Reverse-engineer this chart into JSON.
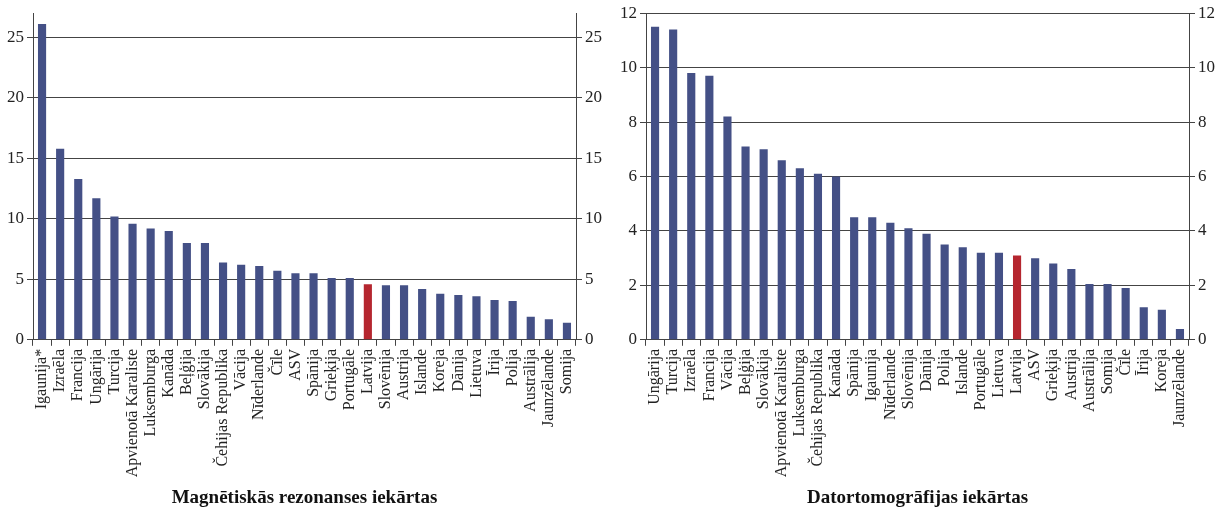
{
  "chart_data": [
    {
      "type": "bar",
      "title": "Magnētiskās rezonanses iekārtas",
      "categories": [
        "Igaunija*",
        "Izraēla",
        "Francija",
        "Ungārija",
        "Turcija",
        "Apvienotā Karaliste",
        "Luksemburga",
        "Kanāda",
        "Beļģija",
        "Slovākija",
        "Čehijas Republika",
        "Vācija",
        "Nīderlande",
        "Čīle",
        "ASV",
        "Spānija",
        "Grieķija",
        "Portugāle",
        "Latvija",
        "Slovēnija",
        "Austrija",
        "Islande",
        "Koreja",
        "Dānija",
        "Lietuva",
        "Īrija",
        "Polija",
        "Austrālija",
        "Jaunzēlande",
        "Somija"
      ],
      "values": [
        26.1,
        15.8,
        13.3,
        11.7,
        10.2,
        9.6,
        9.2,
        9.0,
        8.0,
        8.0,
        6.4,
        6.2,
        6.1,
        5.7,
        5.5,
        5.5,
        5.1,
        5.1,
        4.6,
        4.5,
        4.5,
        4.2,
        3.8,
        3.7,
        3.6,
        3.3,
        3.2,
        1.9,
        1.7,
        1.4
      ],
      "colors": [
        "#445086",
        "#445086",
        "#445086",
        "#445086",
        "#445086",
        "#445086",
        "#445086",
        "#445086",
        "#445086",
        "#445086",
        "#445086",
        "#445086",
        "#445086",
        "#445086",
        "#445086",
        "#445086",
        "#445086",
        "#445086",
        "#b5262f",
        "#445086",
        "#445086",
        "#445086",
        "#445086",
        "#445086",
        "#445086",
        "#445086",
        "#445086",
        "#445086",
        "#445086",
        "#445086"
      ],
      "ylim": [
        0,
        27
      ],
      "yticks": [
        0,
        5,
        10,
        15,
        20,
        25
      ],
      "y2lim": [
        0,
        27
      ],
      "y2ticks": [
        0,
        5,
        10,
        15,
        20,
        25
      ],
      "grid": "y",
      "legend": false
    },
    {
      "type": "bar",
      "title": "Datortomogrāfijas iekārtas",
      "categories": [
        "Ungārija",
        "Turcija",
        "Izraēla",
        "Francija",
        "Vācija",
        "Beļģija",
        "Slovākija",
        "Apvienotā Karaliste",
        "Luksemburga",
        "Čehijas Republika",
        "Kanāda",
        "Spānija",
        "Igaunija",
        "Nīderlande",
        "Slovēnija",
        "Dānija",
        "Polija",
        "Islande",
        "Portugāle",
        "Lietuva",
        "Latvija",
        "ASV",
        "Grieķija",
        "Austrija",
        "Austrālija",
        "Somija",
        "Čīle",
        "Īrija",
        "Koreja",
        "Jaunzēlande"
      ],
      "values": [
        11.5,
        11.4,
        9.8,
        9.7,
        8.2,
        7.1,
        7.0,
        6.6,
        6.3,
        6.1,
        6.0,
        4.5,
        4.5,
        4.3,
        4.1,
        3.9,
        3.5,
        3.4,
        3.2,
        3.2,
        3.1,
        3.0,
        2.8,
        2.6,
        2.05,
        2.05,
        1.9,
        1.2,
        1.1,
        0.4
      ],
      "colors": [
        "#445086",
        "#445086",
        "#445086",
        "#445086",
        "#445086",
        "#445086",
        "#445086",
        "#445086",
        "#445086",
        "#445086",
        "#445086",
        "#445086",
        "#445086",
        "#445086",
        "#445086",
        "#445086",
        "#445086",
        "#445086",
        "#445086",
        "#445086",
        "#b5262f",
        "#445086",
        "#445086",
        "#445086",
        "#445086",
        "#445086",
        "#445086",
        "#445086",
        "#445086",
        "#445086"
      ],
      "ylim": [
        0,
        12
      ],
      "yticks": [
        0,
        2,
        4,
        6,
        8,
        10,
        12
      ],
      "y2lim": [
        0,
        12
      ],
      "y2ticks": [
        0,
        2,
        4,
        6,
        8,
        10,
        12
      ],
      "grid": "y",
      "legend": false
    }
  ]
}
